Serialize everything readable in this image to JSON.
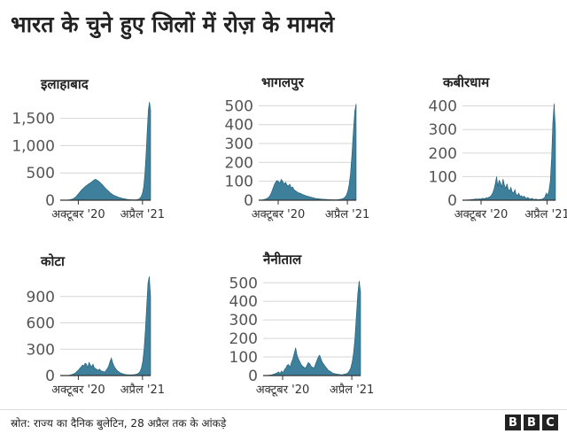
{
  "title": "भारत के चुने हुए जिलों में रोज़ के मामले",
  "source": "स्रोत: राज्य का दैनिक बुलेटिन, 28 अप्रैल तक के आंकड़े",
  "logo": [
    "B",
    "B",
    "C"
  ],
  "colors": {
    "fill": "#3e7f9b",
    "line": "#1f5f78",
    "axis": "#333333",
    "grid": "#d6d6d6"
  },
  "chart_data": [
    {
      "type": "area",
      "title": "इलाहाबाद",
      "x_tick_labels": [
        "अक्टूबर '20",
        "अप्रैल '21"
      ],
      "y_ticks": [
        0,
        500,
        1000,
        1500
      ],
      "y_tick_labels": [
        "0",
        "500",
        "1,000",
        "1,500"
      ],
      "ylim": [
        0,
        1850
      ],
      "peak": 1800,
      "values": [
        0,
        0,
        0,
        0,
        1,
        2,
        3,
        5,
        8,
        12,
        18,
        25,
        35,
        50,
        70,
        95,
        120,
        145,
        170,
        195,
        215,
        235,
        255,
        270,
        285,
        300,
        315,
        330,
        345,
        360,
        375,
        385,
        370,
        355,
        340,
        320,
        300,
        280,
        255,
        230,
        210,
        190,
        170,
        150,
        130,
        115,
        100,
        90,
        80,
        70,
        62,
        55,
        48,
        42,
        36,
        30,
        26,
        22,
        18,
        15,
        12,
        10,
        8,
        7,
        6,
        6,
        7,
        10,
        15,
        25,
        45,
        80,
        140,
        260,
        480,
        820,
        1250,
        1650,
        1800,
        1650
      ]
    },
    {
      "type": "area",
      "title": "भागलपुर",
      "x_tick_labels": [
        "अक्टूबर '20",
        "अप्रैल '21"
      ],
      "y_ticks": [
        0,
        100,
        200,
        300,
        400,
        500
      ],
      "y_tick_labels": [
        "0",
        "100",
        "200",
        "300",
        "400",
        "500"
      ],
      "ylim": [
        0,
        530
      ],
      "peak": 510,
      "values": [
        0,
        0,
        1,
        2,
        4,
        6,
        10,
        15,
        25,
        40,
        60,
        80,
        95,
        105,
        100,
        90,
        110,
        100,
        85,
        95,
        80,
        75,
        85,
        65,
        70,
        55,
        50,
        45,
        40,
        38,
        35,
        30,
        28,
        25,
        22,
        20,
        18,
        16,
        14,
        12,
        10,
        9,
        8,
        7,
        6,
        5,
        5,
        4,
        4,
        3,
        3,
        3,
        2,
        2,
        2,
        2,
        3,
        4,
        5,
        7,
        10,
        15,
        25,
        45,
        80,
        140,
        240,
        360,
        470,
        510
      ]
    },
    {
      "type": "area",
      "title": "कबीरधाम",
      "x_tick_labels": [
        "अक्टूबर '20",
        "अप्रैल '21"
      ],
      "y_ticks": [
        0,
        100,
        200,
        300,
        400
      ],
      "y_tick_labels": [
        "0",
        "100",
        "200",
        "300",
        "400"
      ],
      "ylim": [
        0,
        425
      ],
      "peak": 410,
      "values": [
        0,
        0,
        0,
        1,
        1,
        2,
        2,
        3,
        3,
        4,
        5,
        5,
        4,
        6,
        5,
        7,
        8,
        6,
        10,
        9,
        12,
        15,
        20,
        30,
        45,
        70,
        100,
        60,
        85,
        75,
        55,
        90,
        65,
        50,
        70,
        45,
        40,
        55,
        35,
        30,
        45,
        25,
        20,
        30,
        15,
        20,
        12,
        18,
        10,
        8,
        12,
        6,
        5,
        8,
        4,
        3,
        5,
        3,
        2,
        4,
        3,
        5,
        8,
        15,
        30,
        20,
        40,
        80,
        180,
        330,
        410,
        300
      ]
    },
    {
      "type": "area",
      "title": "कोटा",
      "x_tick_labels": [
        "अक्टूबर '20",
        "अप्रैल '21"
      ],
      "y_ticks": [
        0,
        300,
        600,
        900
      ],
      "y_tick_labels": [
        "0",
        "300",
        "600",
        "900"
      ],
      "ylim": [
        0,
        1150
      ],
      "peak": 1130,
      "values": [
        0,
        0,
        0,
        0,
        1,
        2,
        3,
        5,
        8,
        12,
        18,
        25,
        35,
        50,
        65,
        85,
        100,
        120,
        110,
        140,
        130,
        90,
        150,
        120,
        100,
        130,
        90,
        80,
        70,
        60,
        75,
        55,
        50,
        45,
        40,
        60,
        80,
        110,
        160,
        200,
        150,
        110,
        85,
        65,
        50,
        40,
        30,
        25,
        20,
        15,
        12,
        10,
        9,
        8,
        8,
        9,
        10,
        12,
        15,
        20,
        30,
        50,
        90,
        160,
        300,
        520,
        800,
        1050,
        1130,
        900
      ]
    },
    {
      "type": "area",
      "title": "नैनीताल",
      "x_tick_labels": [
        "अक्टूबर '20",
        "अप्रैल '21"
      ],
      "y_ticks": [
        0,
        100,
        200,
        300,
        400,
        500
      ],
      "y_tick_labels": [
        "0",
        "100",
        "200",
        "300",
        "400",
        "500"
      ],
      "ylim": [
        0,
        530
      ],
      "peak": 510,
      "values": [
        0,
        0,
        1,
        1,
        2,
        3,
        4,
        6,
        8,
        12,
        15,
        20,
        10,
        25,
        15,
        30,
        40,
        55,
        60,
        45,
        70,
        90,
        120,
        150,
        110,
        90,
        75,
        60,
        50,
        45,
        40,
        55,
        70,
        65,
        50,
        45,
        40,
        60,
        80,
        100,
        110,
        90,
        70,
        60,
        50,
        40,
        30,
        25,
        20,
        15,
        12,
        10,
        8,
        7,
        6,
        5,
        5,
        6,
        8,
        10,
        15,
        25,
        40,
        70,
        120,
        200,
        320,
        440,
        510,
        450
      ]
    }
  ]
}
